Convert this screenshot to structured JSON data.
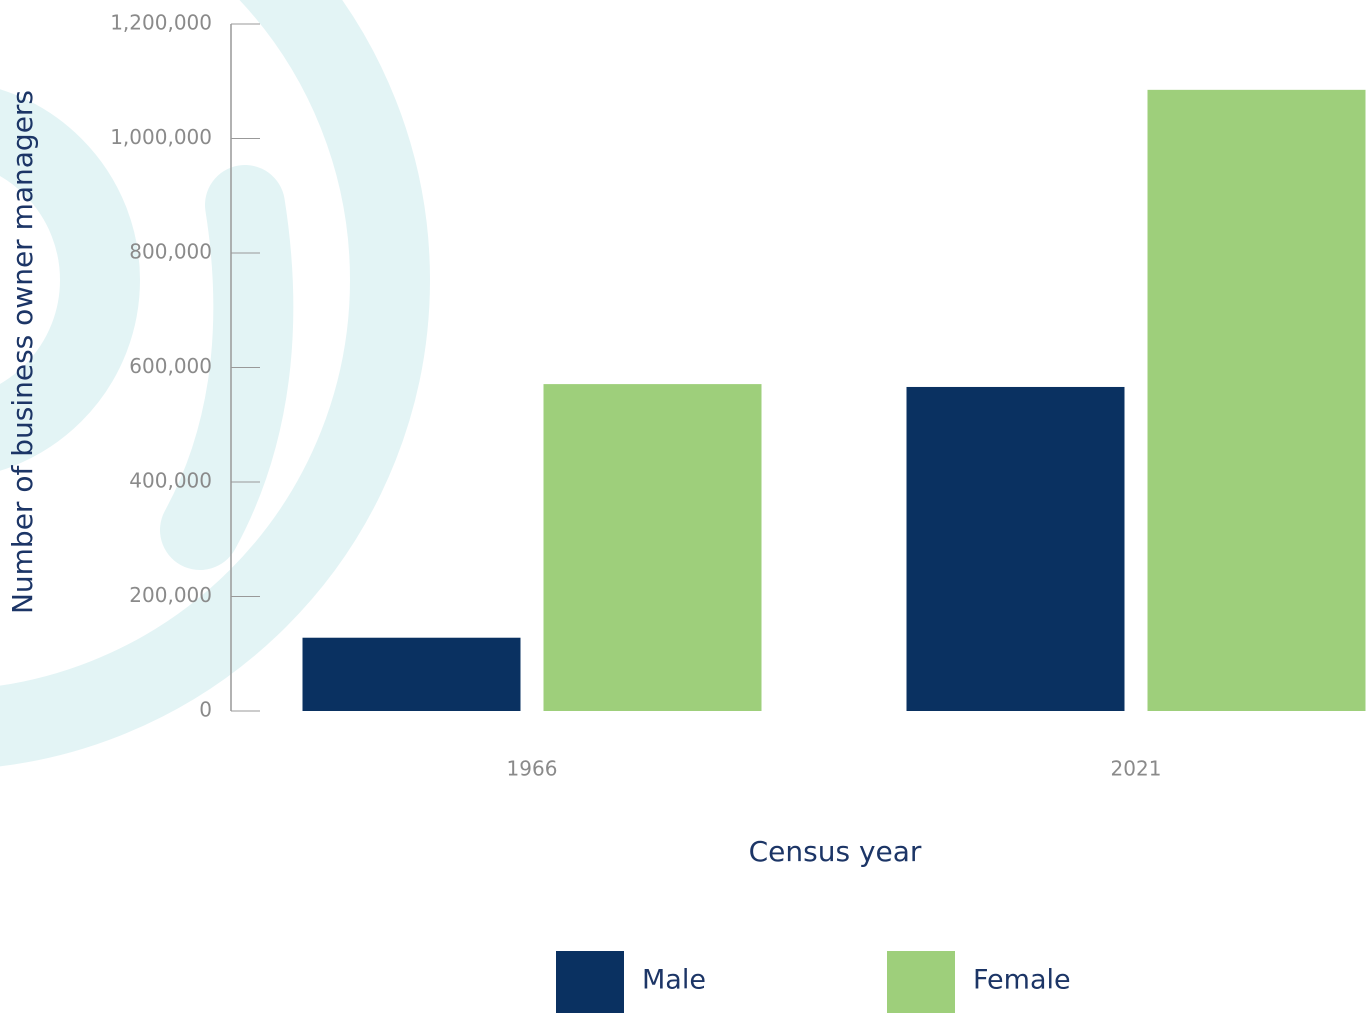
{
  "chart_data": {
    "type": "bar",
    "y_label": "Number of business owner managers",
    "x_label": "Census year",
    "categories": [
      "1966",
      "2021"
    ],
    "series": [
      {
        "name": "Male",
        "color": "#0a3161",
        "values": [
          128000,
          566000
        ]
      },
      {
        "name": "Female",
        "color": "#9ecf7b",
        "values": [
          571000,
          1085000
        ]
      }
    ],
    "ylim": [
      0,
      1200000
    ],
    "yticks": [
      0,
      {
        "value": 200000,
        "label": "200,000"
      },
      {
        "value": 400000,
        "label": "400,000"
      },
      {
        "value": 600000,
        "label": "600,000"
      },
      {
        "value": 800000,
        "label": "800,000"
      },
      {
        "value": 1000000,
        "label": "1,000,000"
      },
      {
        "value": 1200000,
        "label": "1,200,000"
      }
    ]
  }
}
